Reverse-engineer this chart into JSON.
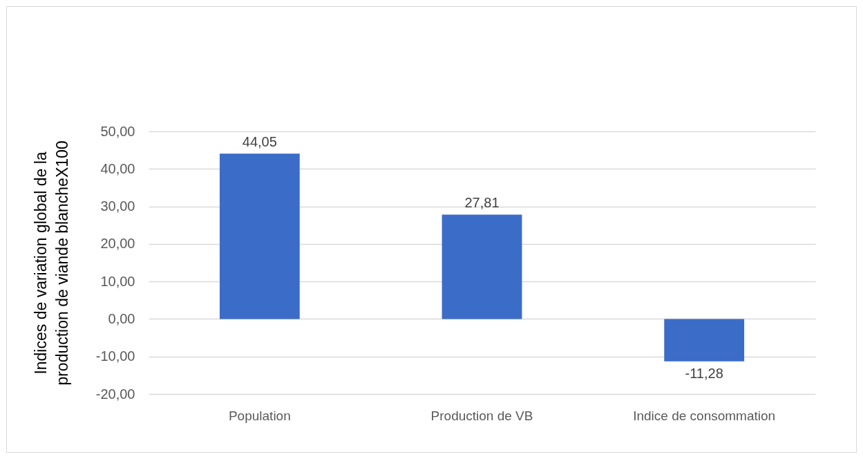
{
  "chart_data": {
    "type": "bar",
    "ylabel": "Indices de variation global de la production de viande blancheX100",
    "categories": [
      "Population",
      "Production de VB",
      "Indice de consommation"
    ],
    "values": [
      44.05,
      27.81,
      -11.28
    ],
    "value_labels": [
      "44,05",
      "27,81",
      "-11,28"
    ],
    "color": "#3b6cc8",
    "ylim": [
      -20,
      50
    ],
    "yticks": [
      {
        "value": -20,
        "label": "-20,00"
      },
      {
        "value": -10,
        "label": "-10,00"
      },
      {
        "value": 0,
        "label": "0,00"
      },
      {
        "value": 10,
        "label": "10,00"
      },
      {
        "value": 20,
        "label": "20,00"
      },
      {
        "value": 30,
        "label": "30,00"
      },
      {
        "value": 40,
        "label": "40,00"
      },
      {
        "value": 50,
        "label": "50,00"
      }
    ],
    "grid": "y"
  }
}
